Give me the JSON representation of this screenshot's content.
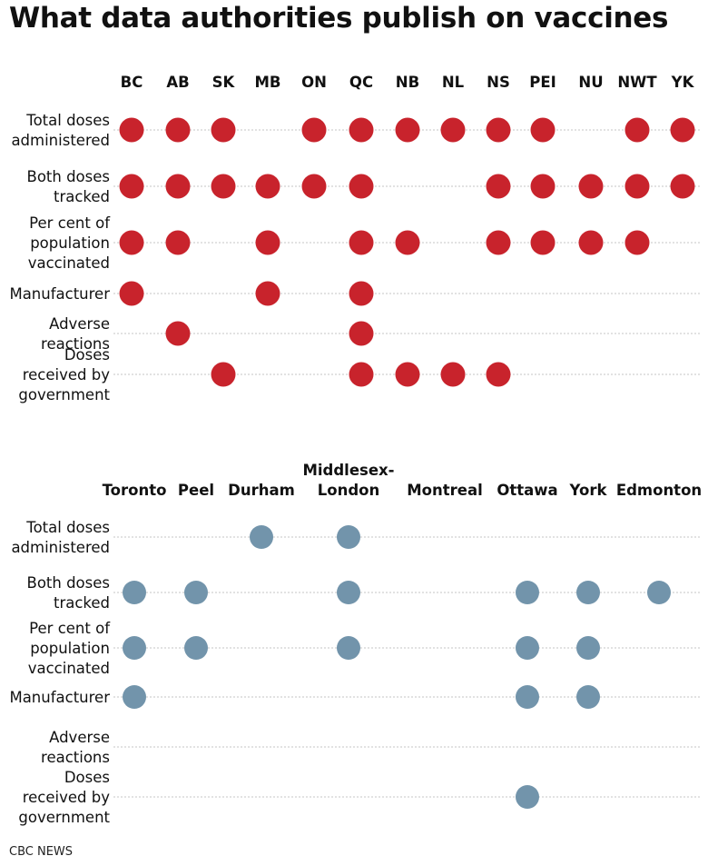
{
  "title": "What data authorities publish on vaccines",
  "credit": "CBC NEWS",
  "colors": {
    "provinces": "#c8232c",
    "cities": "#7294ab"
  },
  "chart_data": [
    {
      "type": "scatter",
      "name": "provinces",
      "columns": [
        "BC",
        "AB",
        "SK",
        "MB",
        "ON",
        "QC",
        "NB",
        "NL",
        "NS",
        "PEI",
        "NU",
        "NWT",
        "YK"
      ],
      "rows": [
        {
          "label": [
            "Total doses",
            "administered"
          ],
          "published": [
            "BC",
            "AB",
            "SK",
            "ON",
            "QC",
            "NB",
            "NL",
            "NS",
            "PEI",
            "NWT",
            "YK"
          ]
        },
        {
          "label": [
            "Both doses",
            "tracked"
          ],
          "published": [
            "BC",
            "AB",
            "SK",
            "MB",
            "ON",
            "QC",
            "NS",
            "PEI",
            "NU",
            "NWT",
            "YK"
          ]
        },
        {
          "label": [
            "Per cent of",
            "population",
            "vaccinated"
          ],
          "published": [
            "BC",
            "AB",
            "MB",
            "QC",
            "NB",
            "NS",
            "PEI",
            "NU",
            "NWT"
          ]
        },
        {
          "label": [
            "Manufacturer"
          ],
          "published": [
            "BC",
            "MB",
            "QC"
          ]
        },
        {
          "label": [
            "Adverse",
            "reactions"
          ],
          "published": [
            "AB",
            "QC"
          ]
        },
        {
          "label": [
            "Doses",
            "received by",
            "government"
          ],
          "published": [
            "SK",
            "QC",
            "NB",
            "NL",
            "NS"
          ]
        }
      ]
    },
    {
      "type": "scatter",
      "name": "cities",
      "columns": [
        [
          "Toronto"
        ],
        [
          "Peel"
        ],
        [
          "Durham"
        ],
        [
          "Middlesex-",
          "London"
        ],
        [
          "Montreal"
        ],
        [
          "Ottawa"
        ],
        [
          "York"
        ],
        [
          "Edmonton"
        ]
      ],
      "rows": [
        {
          "label": [
            "Total doses",
            "administered"
          ],
          "published": [
            "Durham",
            "Middlesex-London"
          ]
        },
        {
          "label": [
            "Both doses",
            "tracked"
          ],
          "published": [
            "Toronto",
            "Peel",
            "Middlesex-London",
            "Ottawa",
            "York",
            "Edmonton"
          ]
        },
        {
          "label": [
            "Per cent of",
            "population",
            "vaccinated"
          ],
          "published": [
            "Toronto",
            "Peel",
            "Middlesex-London",
            "Ottawa",
            "York"
          ]
        },
        {
          "label": [
            "Manufacturer"
          ],
          "published": [
            "Toronto",
            "Ottawa",
            "York"
          ]
        },
        {
          "label": [
            "Adverse",
            "reactions"
          ],
          "published": []
        },
        {
          "label": [
            "Doses",
            "received by",
            "government"
          ],
          "published": [
            "Ottawa"
          ]
        }
      ]
    }
  ]
}
